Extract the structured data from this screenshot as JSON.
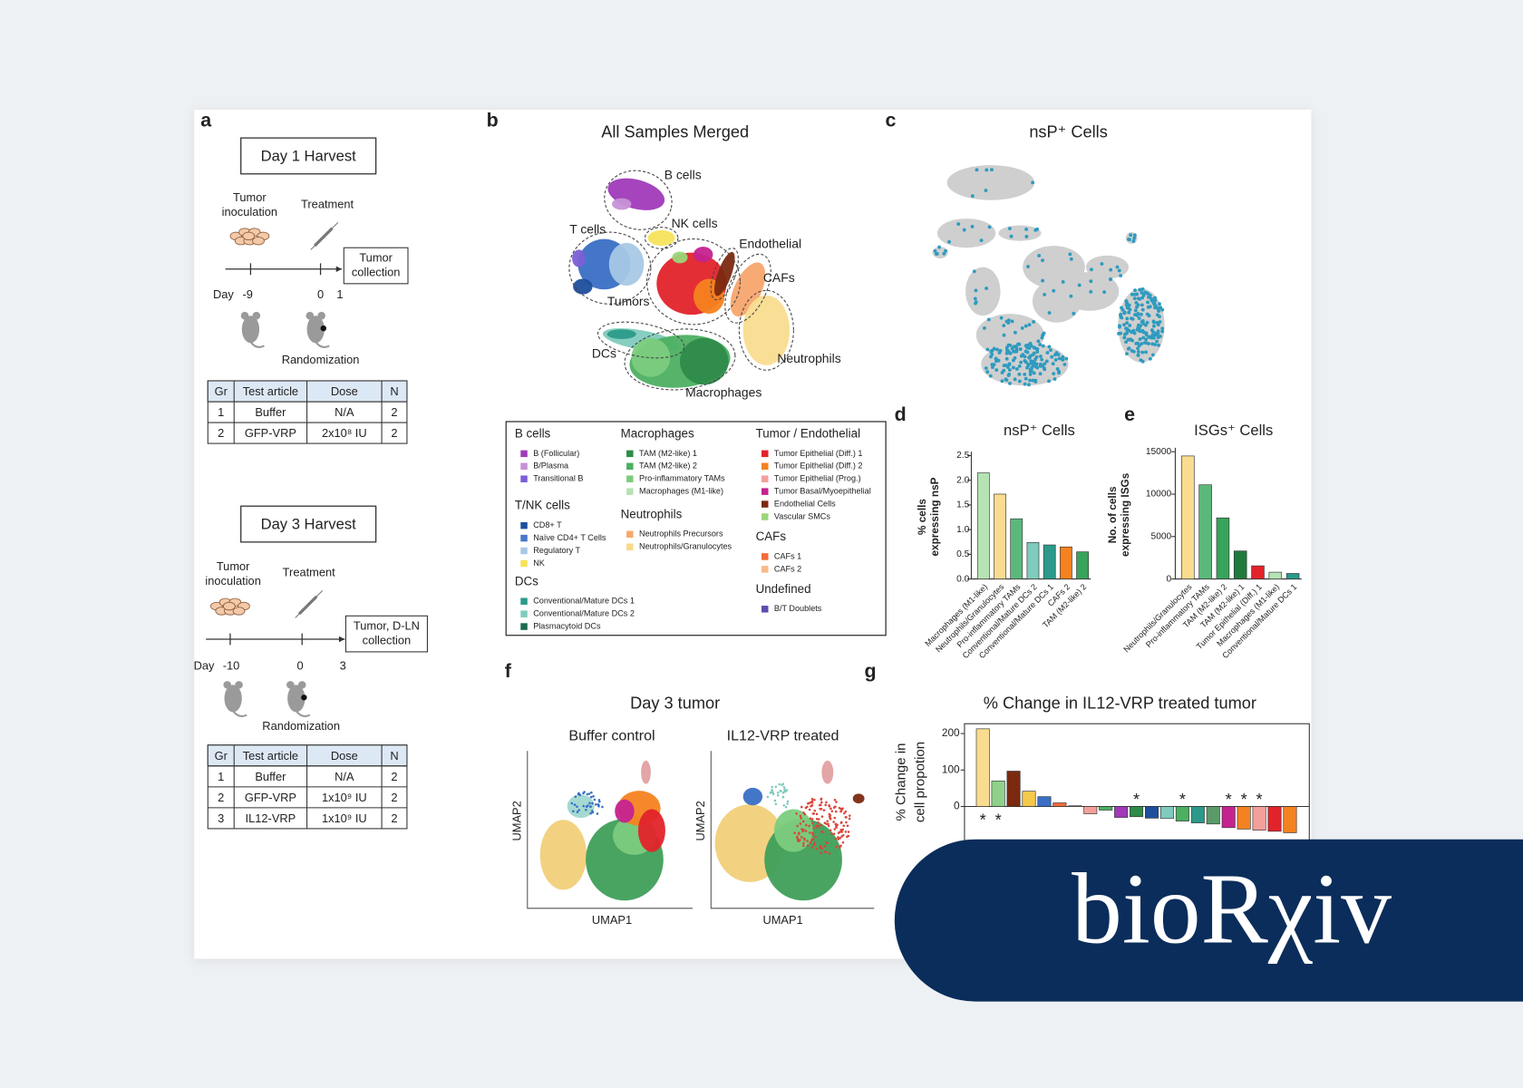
{
  "panel_a": {
    "label": "a",
    "day1": {
      "title": "Day 1 Harvest",
      "inoculation": [
        "Tumor",
        "inoculation"
      ],
      "treatment": "Treatment",
      "collection": [
        "Tumor",
        "collection"
      ],
      "day_word": "Day",
      "timepoints": [
        "-9",
        "0",
        "1"
      ],
      "randomization": "Randomization",
      "table": {
        "header": [
          "Gr",
          "Test article",
          "Dose",
          "N"
        ],
        "rows": [
          [
            "1",
            "Buffer",
            "N/A",
            "2"
          ],
          [
            "2",
            "GFP-VRP",
            "2x10⁸ IU",
            "2"
          ]
        ]
      }
    },
    "day3": {
      "title": "Day 3 Harvest",
      "inoculation": [
        "Tumor",
        "inoculation"
      ],
      "treatment": "Treatment",
      "collection": [
        "Tumor, D-LN",
        "collection"
      ],
      "day_word": "Day",
      "timepoints": [
        "-10",
        "0",
        "3"
      ],
      "randomization": "Randomization",
      "table": {
        "header": [
          "Gr",
          "Test article",
          "Dose",
          "N"
        ],
        "rows": [
          [
            "1",
            "Buffer",
            "N/A",
            "2"
          ],
          [
            "2",
            "GFP-VRP",
            "1x10⁹ IU",
            "2"
          ],
          [
            "3",
            "IL12-VRP",
            "1x10⁹ IU",
            "2"
          ]
        ]
      }
    }
  },
  "panel_b": {
    "label": "b",
    "title": "All Samples Merged",
    "clusters": [
      "B cells",
      "NK cells",
      "T cells",
      "Endothelial",
      "CAFs",
      "Tumors",
      "DCs",
      "Neutrophils",
      "Macrophages"
    ],
    "legend": [
      {
        "title": "B cells",
        "items": [
          {
            "label": "B (Follicular)",
            "color": "#a03ab8"
          },
          {
            "label": "B/Plasma",
            "color": "#c792d6"
          },
          {
            "label": "Transitional B",
            "color": "#7b5fd6"
          }
        ]
      },
      {
        "title": "T/NK cells",
        "items": [
          {
            "label": "CD8+ T",
            "color": "#1f4e9c"
          },
          {
            "label": "Naïve CD4+ T Cells",
            "color": "#4a78c8"
          },
          {
            "label": "Regulatory T",
            "color": "#a8c8e6"
          },
          {
            "label": "NK",
            "color": "#f6e35a"
          }
        ]
      },
      {
        "title": "DCs",
        "items": [
          {
            "label": "Conventional/Mature DCs 1",
            "color": "#2b9a8a"
          },
          {
            "label": "Conventional/Mature DCs 2",
            "color": "#7fcbbd"
          },
          {
            "label": "Plasmacytoid DCs",
            "color": "#1b6b52"
          }
        ]
      },
      {
        "title": "Macrophages",
        "items": [
          {
            "label": "TAM (M2-like) 1",
            "color": "#2e8b4a"
          },
          {
            "label": "TAM (M2-like) 2",
            "color": "#4cb061"
          },
          {
            "label": "Pro-inflammatory TAMs",
            "color": "#7ccc7e"
          },
          {
            "label": "Macrophages (M1-like)",
            "color": "#b6e3b4"
          }
        ]
      },
      {
        "title": "Neutrophils",
        "items": [
          {
            "label": "Neutrophils Precursors",
            "color": "#f7a96a"
          },
          {
            "label": "Neutrophils/Granulocytes",
            "color": "#f9d98a"
          }
        ]
      },
      {
        "title": "Tumor / Endothelial",
        "items": [
          {
            "label": "Tumor Epithelial (Diff.) 1",
            "color": "#e2232a"
          },
          {
            "label": "Tumor Epithelial (Diff.) 2",
            "color": "#f58220"
          },
          {
            "label": "Tumor Epithelial (Prog.)",
            "color": "#f4a09a"
          },
          {
            "label": "Tumor Basal/Myoepithelial",
            "color": "#c4238f"
          },
          {
            "label": "Endothelial Cells",
            "color": "#7b2a10"
          },
          {
            "label": "Vascular SMCs",
            "color": "#9ad67a"
          }
        ]
      },
      {
        "title": "CAFs",
        "items": [
          {
            "label": "CAFs 1",
            "color": "#f26a3a"
          },
          {
            "label": "CAFs 2",
            "color": "#f9b98a"
          }
        ]
      },
      {
        "title": "Undefined",
        "items": [
          {
            "label": "B/T Doublets",
            "color": "#5a4fb0"
          }
        ]
      }
    ]
  },
  "panel_c": {
    "label": "c",
    "title": "nsP⁺ Cells"
  },
  "panel_f": {
    "label": "f",
    "title": "Day 3 tumor",
    "conditions": [
      "Buffer control",
      "IL12-VRP treated"
    ],
    "xlabel": "UMAP1",
    "ylabel": "UMAP2"
  },
  "chart_data": [
    {
      "type": "bar",
      "panel": "d",
      "title": "nsP⁺ Cells",
      "ylabel": [
        "% cells",
        "expressing nsP"
      ],
      "categories": [
        "Macrophages (M1-like)",
        "Neutrophils/Granulocytes",
        "Pro-inflammatory TAMs",
        "Conventional/Mature DCs 2",
        "Conventional/Mature DCs 1",
        "CAFs 2",
        "TAM (M2-like) 2"
      ],
      "values": [
        2.15,
        1.72,
        1.22,
        0.74,
        0.69,
        0.65,
        0.55
      ],
      "colors": [
        "#b6e3b4",
        "#f9dc8f",
        "#5cb87a",
        "#7fcbbd",
        "#2b9a8a",
        "#f58220",
        "#38a35a"
      ],
      "ylim": [
        0,
        2.5
      ],
      "yticks": [
        {
          "value": 0,
          "label": "0.0"
        },
        0.5,
        {
          "value": 1,
          "label": "1.0"
        },
        1.5,
        {
          "value": 2,
          "label": "2.0"
        },
        2.5
      ]
    },
    {
      "type": "bar",
      "panel": "e",
      "title": "ISGs⁺ Cells",
      "ylabel": [
        "No. of cells",
        "expressing ISGs"
      ],
      "categories": [
        "Neutrophils/Granulocytes",
        "Pro-inflammatory TAMs",
        "TAM (M2-like) 2",
        "TAM (M2-like) 1",
        "Tumor Epithelial (Diff.) 1",
        "Macrophages (M1-like)",
        "Conventional/Mature DCs 1"
      ],
      "values": [
        14500,
        11100,
        7200,
        3300,
        1550,
        800,
        650
      ],
      "colors": [
        "#f9dc8f",
        "#5cb87a",
        "#38a35a",
        "#1f7a3c",
        "#e2232a",
        "#b6e3b4",
        "#2b9a8a"
      ],
      "ylim": [
        0,
        15000
      ],
      "yticks": [
        0,
        5000,
        10000,
        15000
      ]
    },
    {
      "type": "bar",
      "panel": "g",
      "title": "% Change in IL12-VRP treated tumor",
      "ylabel": [
        "% Change in",
        "cell propotion"
      ],
      "values": [
        213,
        70,
        97,
        42,
        27,
        10,
        2,
        -20,
        -10,
        -30,
        -28,
        -32,
        -33,
        -40,
        -45,
        -48,
        -58,
        -62,
        -65,
        -68,
        -72
      ],
      "colors": [
        "#f9dc8f",
        "#8fd18a",
        "#7b2a10",
        "#f6c94a",
        "#3a6fc4",
        "#f26a3a",
        "#f4a09a",
        "#f4a09a",
        "#4cb061",
        "#a03ab8",
        "#2e8b4a",
        "#1f4e9c",
        "#7fcbbd",
        "#4cb061",
        "#2b9a8a",
        "#5a9a6a",
        "#c4238f",
        "#f58220",
        "#f4a09a",
        "#e2232a",
        "#f58220"
      ],
      "markers": [
        "*",
        "*",
        null,
        null,
        null,
        null,
        null,
        null,
        null,
        null,
        "*",
        null,
        null,
        "*",
        null,
        null,
        "*",
        "*",
        "*",
        null,
        null
      ],
      "ylim": [
        -90,
        227
      ],
      "yticks": [
        0,
        100,
        200
      ]
    }
  ],
  "banner": {
    "text": "bioRχiv"
  }
}
